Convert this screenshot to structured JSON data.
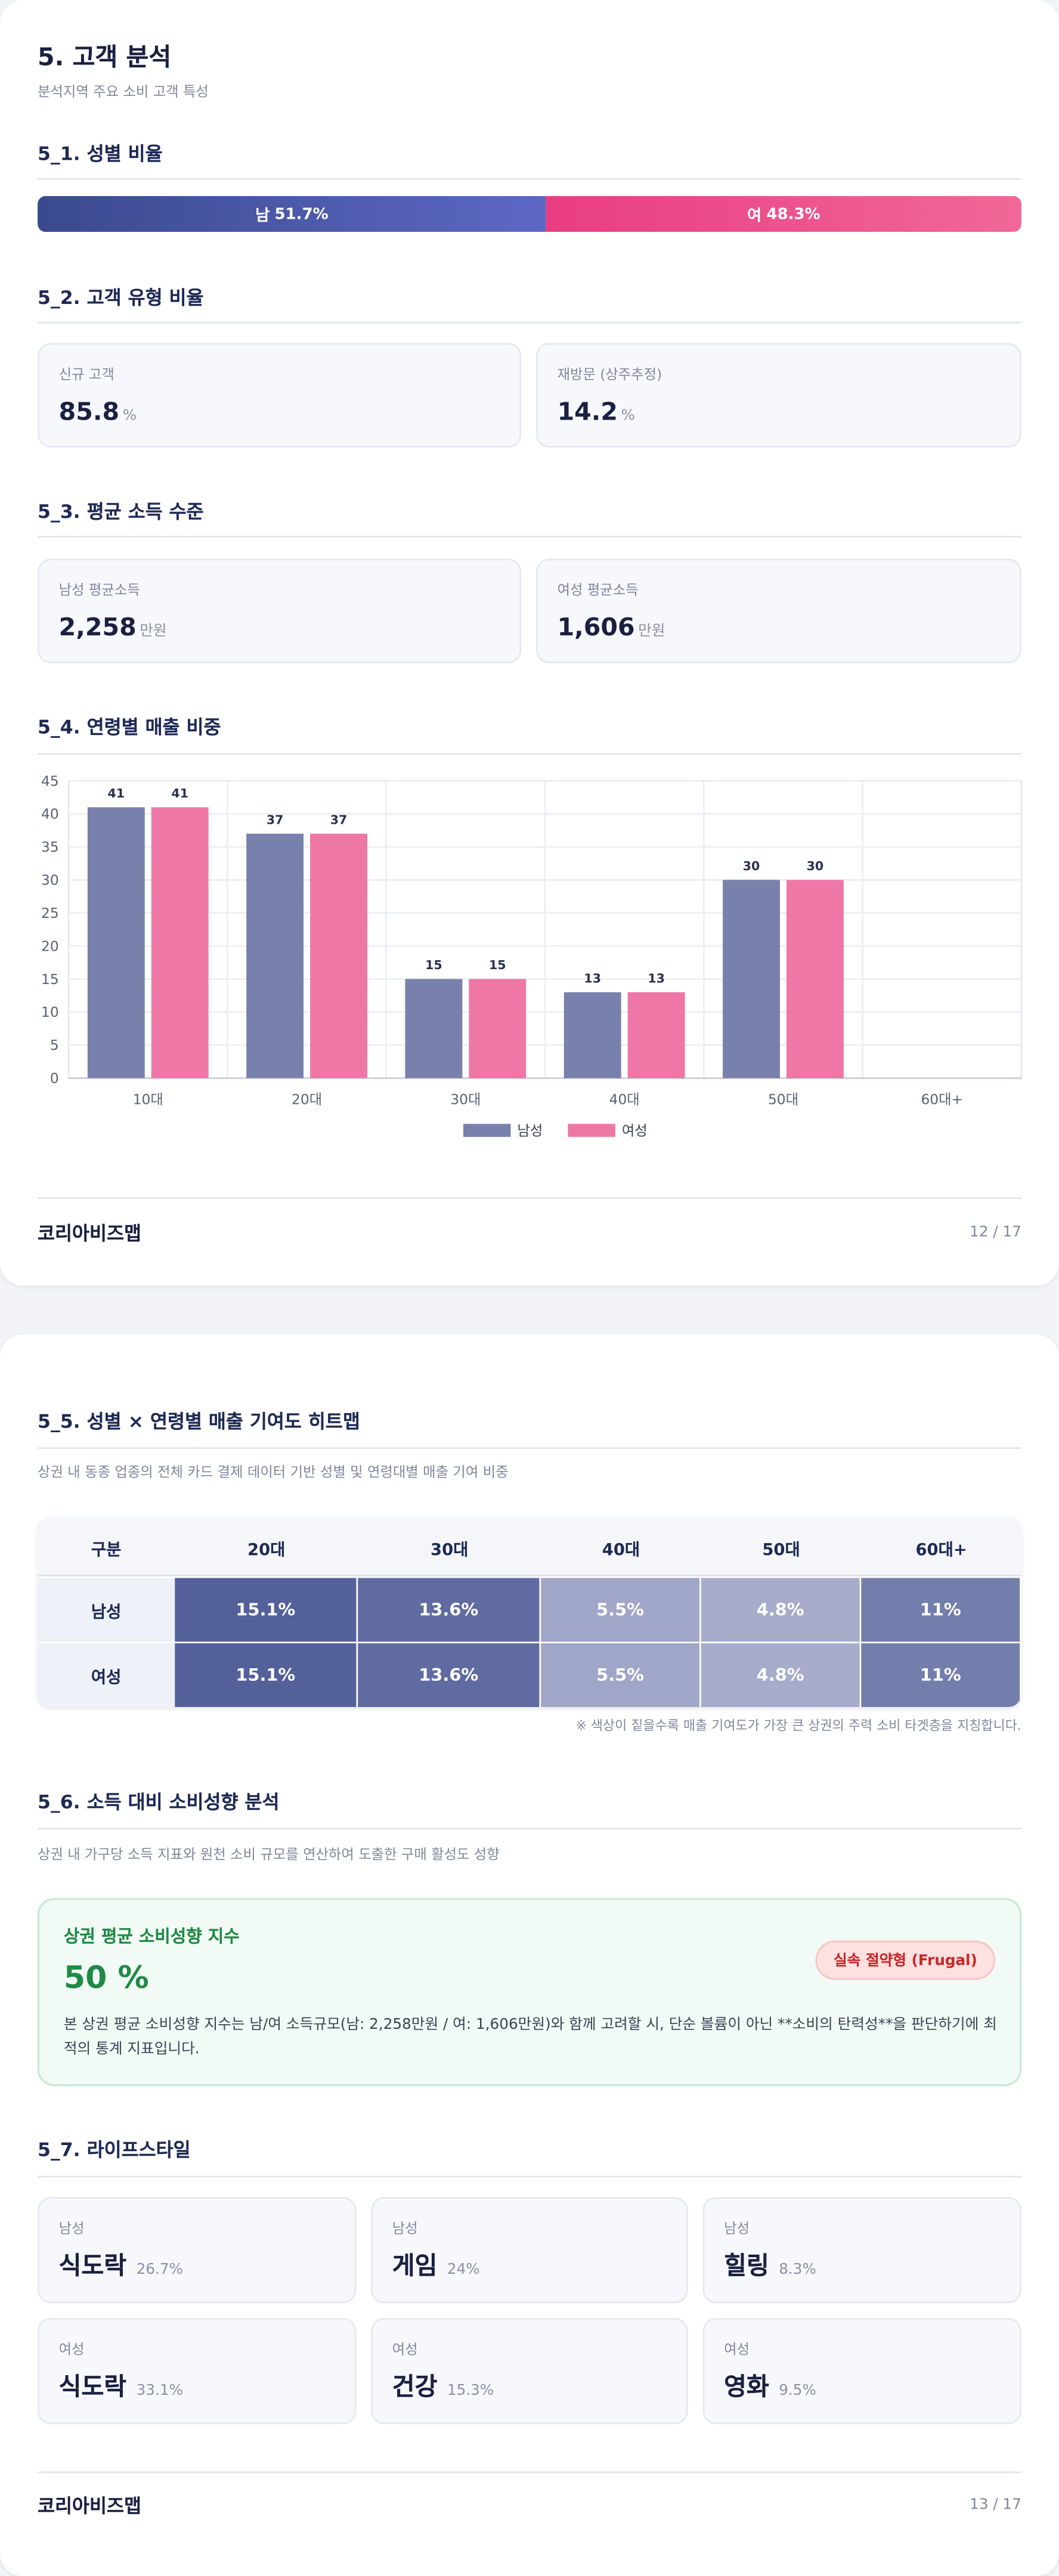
{
  "page1": {
    "title": "5. 고객 분석",
    "subtitle": "분석지역 주요 소비 고객 특성",
    "gender_ratio": {
      "heading": "5_1. 성별 비율",
      "segments": [
        {
          "label": "남",
          "value": 51.7,
          "value_label": "51.7%",
          "color": "#4a57a8"
        },
        {
          "label": "여",
          "value": 48.3,
          "value_label": "48.3%",
          "color": "#ec4b8a"
        }
      ]
    },
    "customer_type": {
      "heading": "5_2. 고객 유형 비율",
      "cards": [
        {
          "label": "신규 고객",
          "value": 85.8,
          "unit": "%"
        },
        {
          "label": "재방문 (상주추정)",
          "value": 14.2,
          "unit": "%"
        }
      ]
    },
    "income": {
      "heading": "5_3. 평균 소득 수준",
      "cards": [
        {
          "label": "남성 평균소득",
          "value": "2,258",
          "unit": "만원"
        },
        {
          "label": "여성 평균소득",
          "value": "1,606",
          "unit": "만원"
        }
      ]
    },
    "age_heading": "5_4. 연령별 매출 비중",
    "footer": {
      "brand": "코리아비즈맵",
      "page": "12 / 17"
    }
  },
  "chart_data": {
    "type": "bar",
    "categories": [
      "10대",
      "20대",
      "30대",
      "40대",
      "50대",
      "60대+"
    ],
    "series": [
      {
        "name": "남성",
        "color": "#7880ac",
        "values": [
          41,
          37,
          15,
          13,
          30,
          null
        ]
      },
      {
        "name": "여성",
        "color": "#ee77a6",
        "values": [
          41,
          37,
          15,
          13,
          30,
          null
        ]
      }
    ],
    "ylim": [
      0,
      45
    ],
    "yticks": [
      0,
      5,
      10,
      15,
      20,
      25,
      30,
      35,
      40,
      45
    ],
    "grid": true,
    "legend": "bottom"
  },
  "page2": {
    "heatmap": {
      "heading": "5_5. 성별 × 연령별 매출 기여도 히트맵",
      "description": "상권 내 동종 업종의 전체 카드 결제 데이터 기반 성별 및 연령대별 매출 기여 비중",
      "corner": "구분",
      "columns": [
        "20대",
        "30대",
        "40대",
        "50대",
        "60대+"
      ],
      "rows": [
        {
          "name": "남성",
          "values": [
            15.1,
            13.6,
            5.5,
            4.8,
            11
          ],
          "value_labels": [
            "15.1%",
            "13.6%",
            "5.5%",
            "4.8%",
            "11%"
          ]
        },
        {
          "name": "여성",
          "values": [
            15.1,
            13.6,
            5.5,
            4.8,
            11
          ],
          "value_labels": [
            "15.1%",
            "13.6%",
            "5.5%",
            "4.8%",
            "11%"
          ]
        }
      ],
      "note": "※ 색상이 짙을수록 매출 기여도가 가장 큰 상권의 주력 소비 타겟층을 지칭합니다."
    },
    "propensity": {
      "heading": "5_6. 소득 대비 소비성향 분석",
      "description": "상권 내 가구당 소득 지표와 원천 소비 규모를 연산하여 도출한 구매 활성도 성향",
      "box_title": "상권 평균 소비성향 지수",
      "value": 50,
      "value_label": "50 %",
      "badge": "실속 절약형 (Frugal)",
      "text": "본 상권 평균 소비성향 지수는 남/여 소득규모(남: 2,258만원 / 여: 1,606만원)와 함께 고려할 시, 단순 볼륨이 아닌 **소비의 탄력성**을 판단하기에 최적의 통계 지표입니다."
    },
    "lifestyle": {
      "heading": "5_7. 라이프스타일",
      "cards": [
        {
          "gender": "남성",
          "name": "식도락",
          "value": 26.7,
          "value_label": "26.7%"
        },
        {
          "gender": "남성",
          "name": "게임",
          "value": 24,
          "value_label": "24%"
        },
        {
          "gender": "남성",
          "name": "힐링",
          "value": 8.3,
          "value_label": "8.3%"
        },
        {
          "gender": "여성",
          "name": "식도락",
          "value": 33.1,
          "value_label": "33.1%"
        },
        {
          "gender": "여성",
          "name": "건강",
          "value": 15.3,
          "value_label": "15.3%"
        },
        {
          "gender": "여성",
          "name": "영화",
          "value": 9.5,
          "value_label": "9.5%"
        }
      ]
    },
    "footer": {
      "brand": "코리아비즈맵",
      "page": "13 / 17"
    }
  }
}
